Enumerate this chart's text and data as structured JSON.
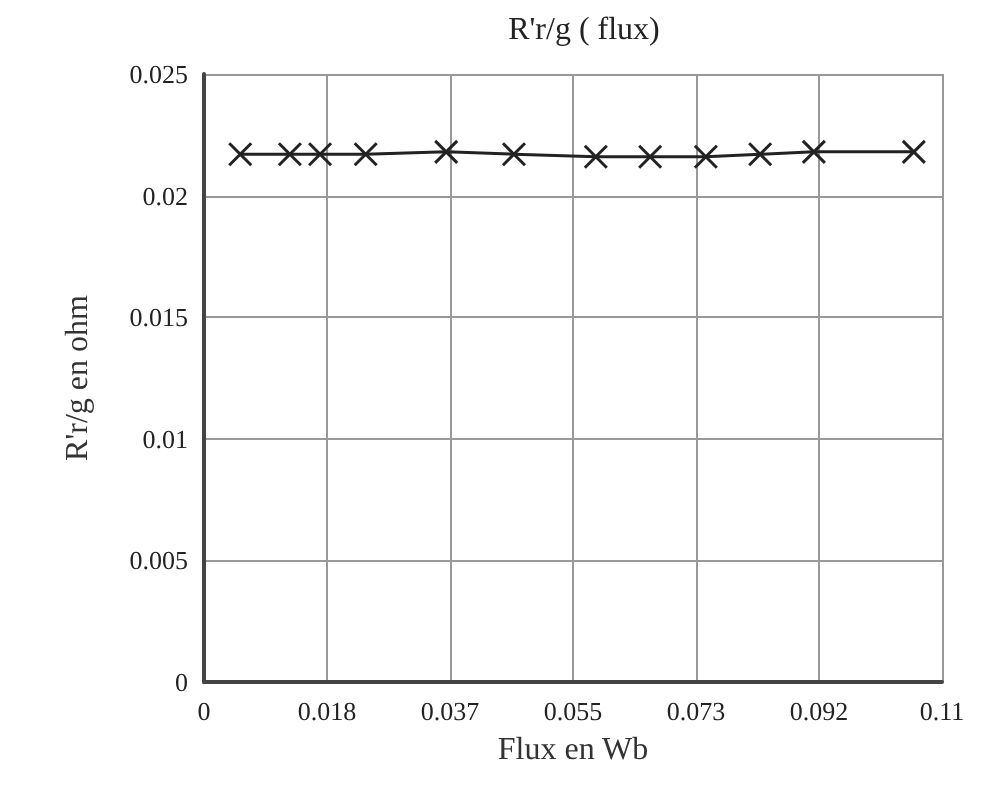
{
  "chart_data": {
    "type": "line",
    "title": "R'r/g ( flux)",
    "xlabel": "Flux en Wb",
    "ylabel": "R'r/g en ohm",
    "x": [
      0.0054,
      0.0128,
      0.0173,
      0.0241,
      0.0361,
      0.0462,
      0.0584,
      0.0665,
      0.0748,
      0.0829,
      0.0909,
      0.1058
    ],
    "series": [
      {
        "color": "#222222",
        "values": [
          0.0217,
          0.0217,
          0.0217,
          0.0217,
          0.0218,
          0.0217,
          0.0216,
          0.0216,
          0.0216,
          0.0217,
          0.0218,
          0.0218
        ]
      }
    ],
    "xlim": [
      0,
      0.11
    ],
    "xticks": [
      0,
      {
        "value": 0.018333,
        "label": "0.018"
      },
      {
        "value": 0.036667,
        "label": "0.037"
      },
      0.055,
      {
        "value": 0.073333,
        "label": "0.073"
      },
      {
        "value": 0.091667,
        "label": "0.092"
      },
      0.11
    ],
    "ylim": [
      0,
      0.025
    ],
    "yticks": [
      0,
      0.005,
      0.01,
      0.015,
      0.02,
      0.025
    ],
    "grid": true,
    "marker": "cross",
    "line_style": "solid"
  }
}
